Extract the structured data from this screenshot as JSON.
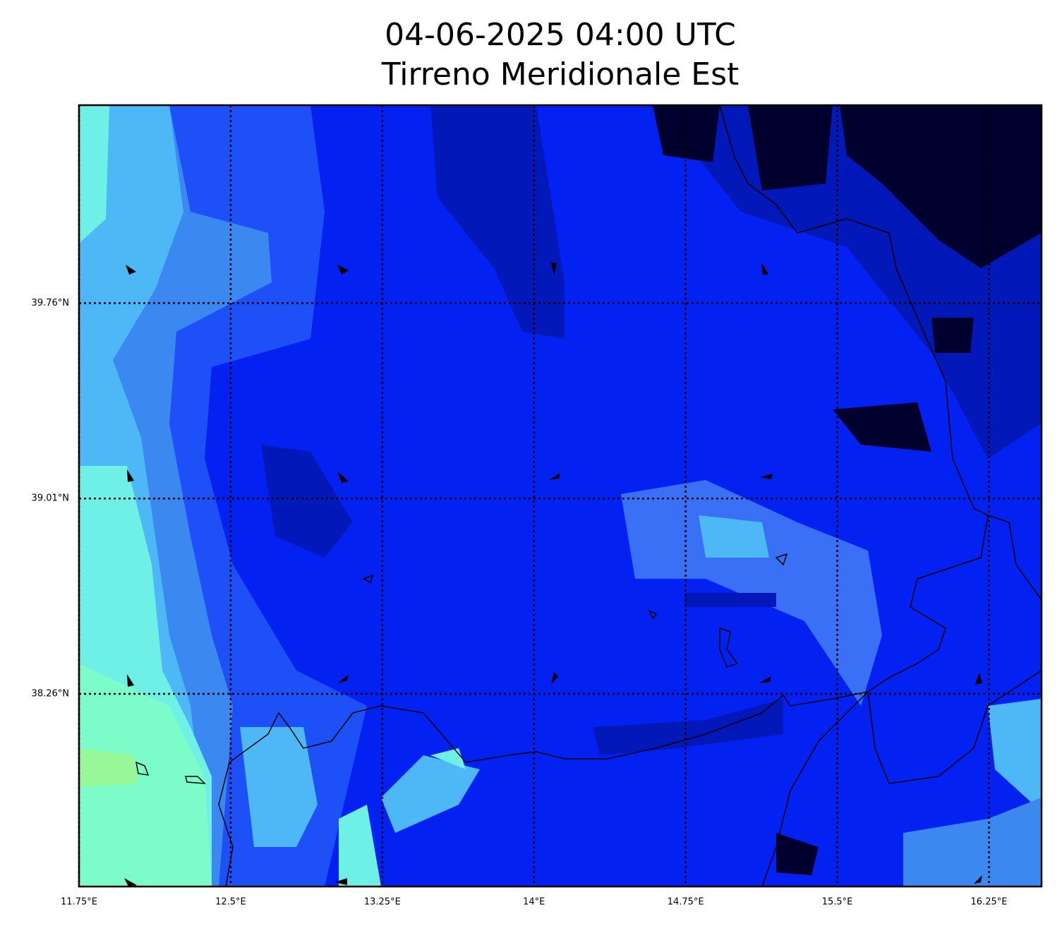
{
  "chart_data": {
    "type": "map",
    "title": "04-06-2025 04:00 UTC",
    "subtitle": "Tirreno Meridionale Est",
    "xlim": [
      11.75,
      16.51
    ],
    "ylim": [
      37.52,
      40.52
    ],
    "xticks": [
      {
        "value": 11.75,
        "label": "11.75°E"
      },
      {
        "value": 12.5,
        "label": "12.5°E"
      },
      {
        "value": 13.25,
        "label": "13.25°E"
      },
      {
        "value": 14,
        "label": "14°E"
      },
      {
        "value": 14.75,
        "label": "14.75°E"
      },
      {
        "value": 15.5,
        "label": "15.5°E"
      },
      {
        "value": 16.25,
        "label": "16.25°E"
      }
    ],
    "yticks": [
      {
        "value": 38.26,
        "label": "38.26°N"
      },
      {
        "value": 39.01,
        "label": "39.01°N"
      },
      {
        "value": 39.76,
        "label": "39.76°N"
      }
    ],
    "grid": true
  }
}
